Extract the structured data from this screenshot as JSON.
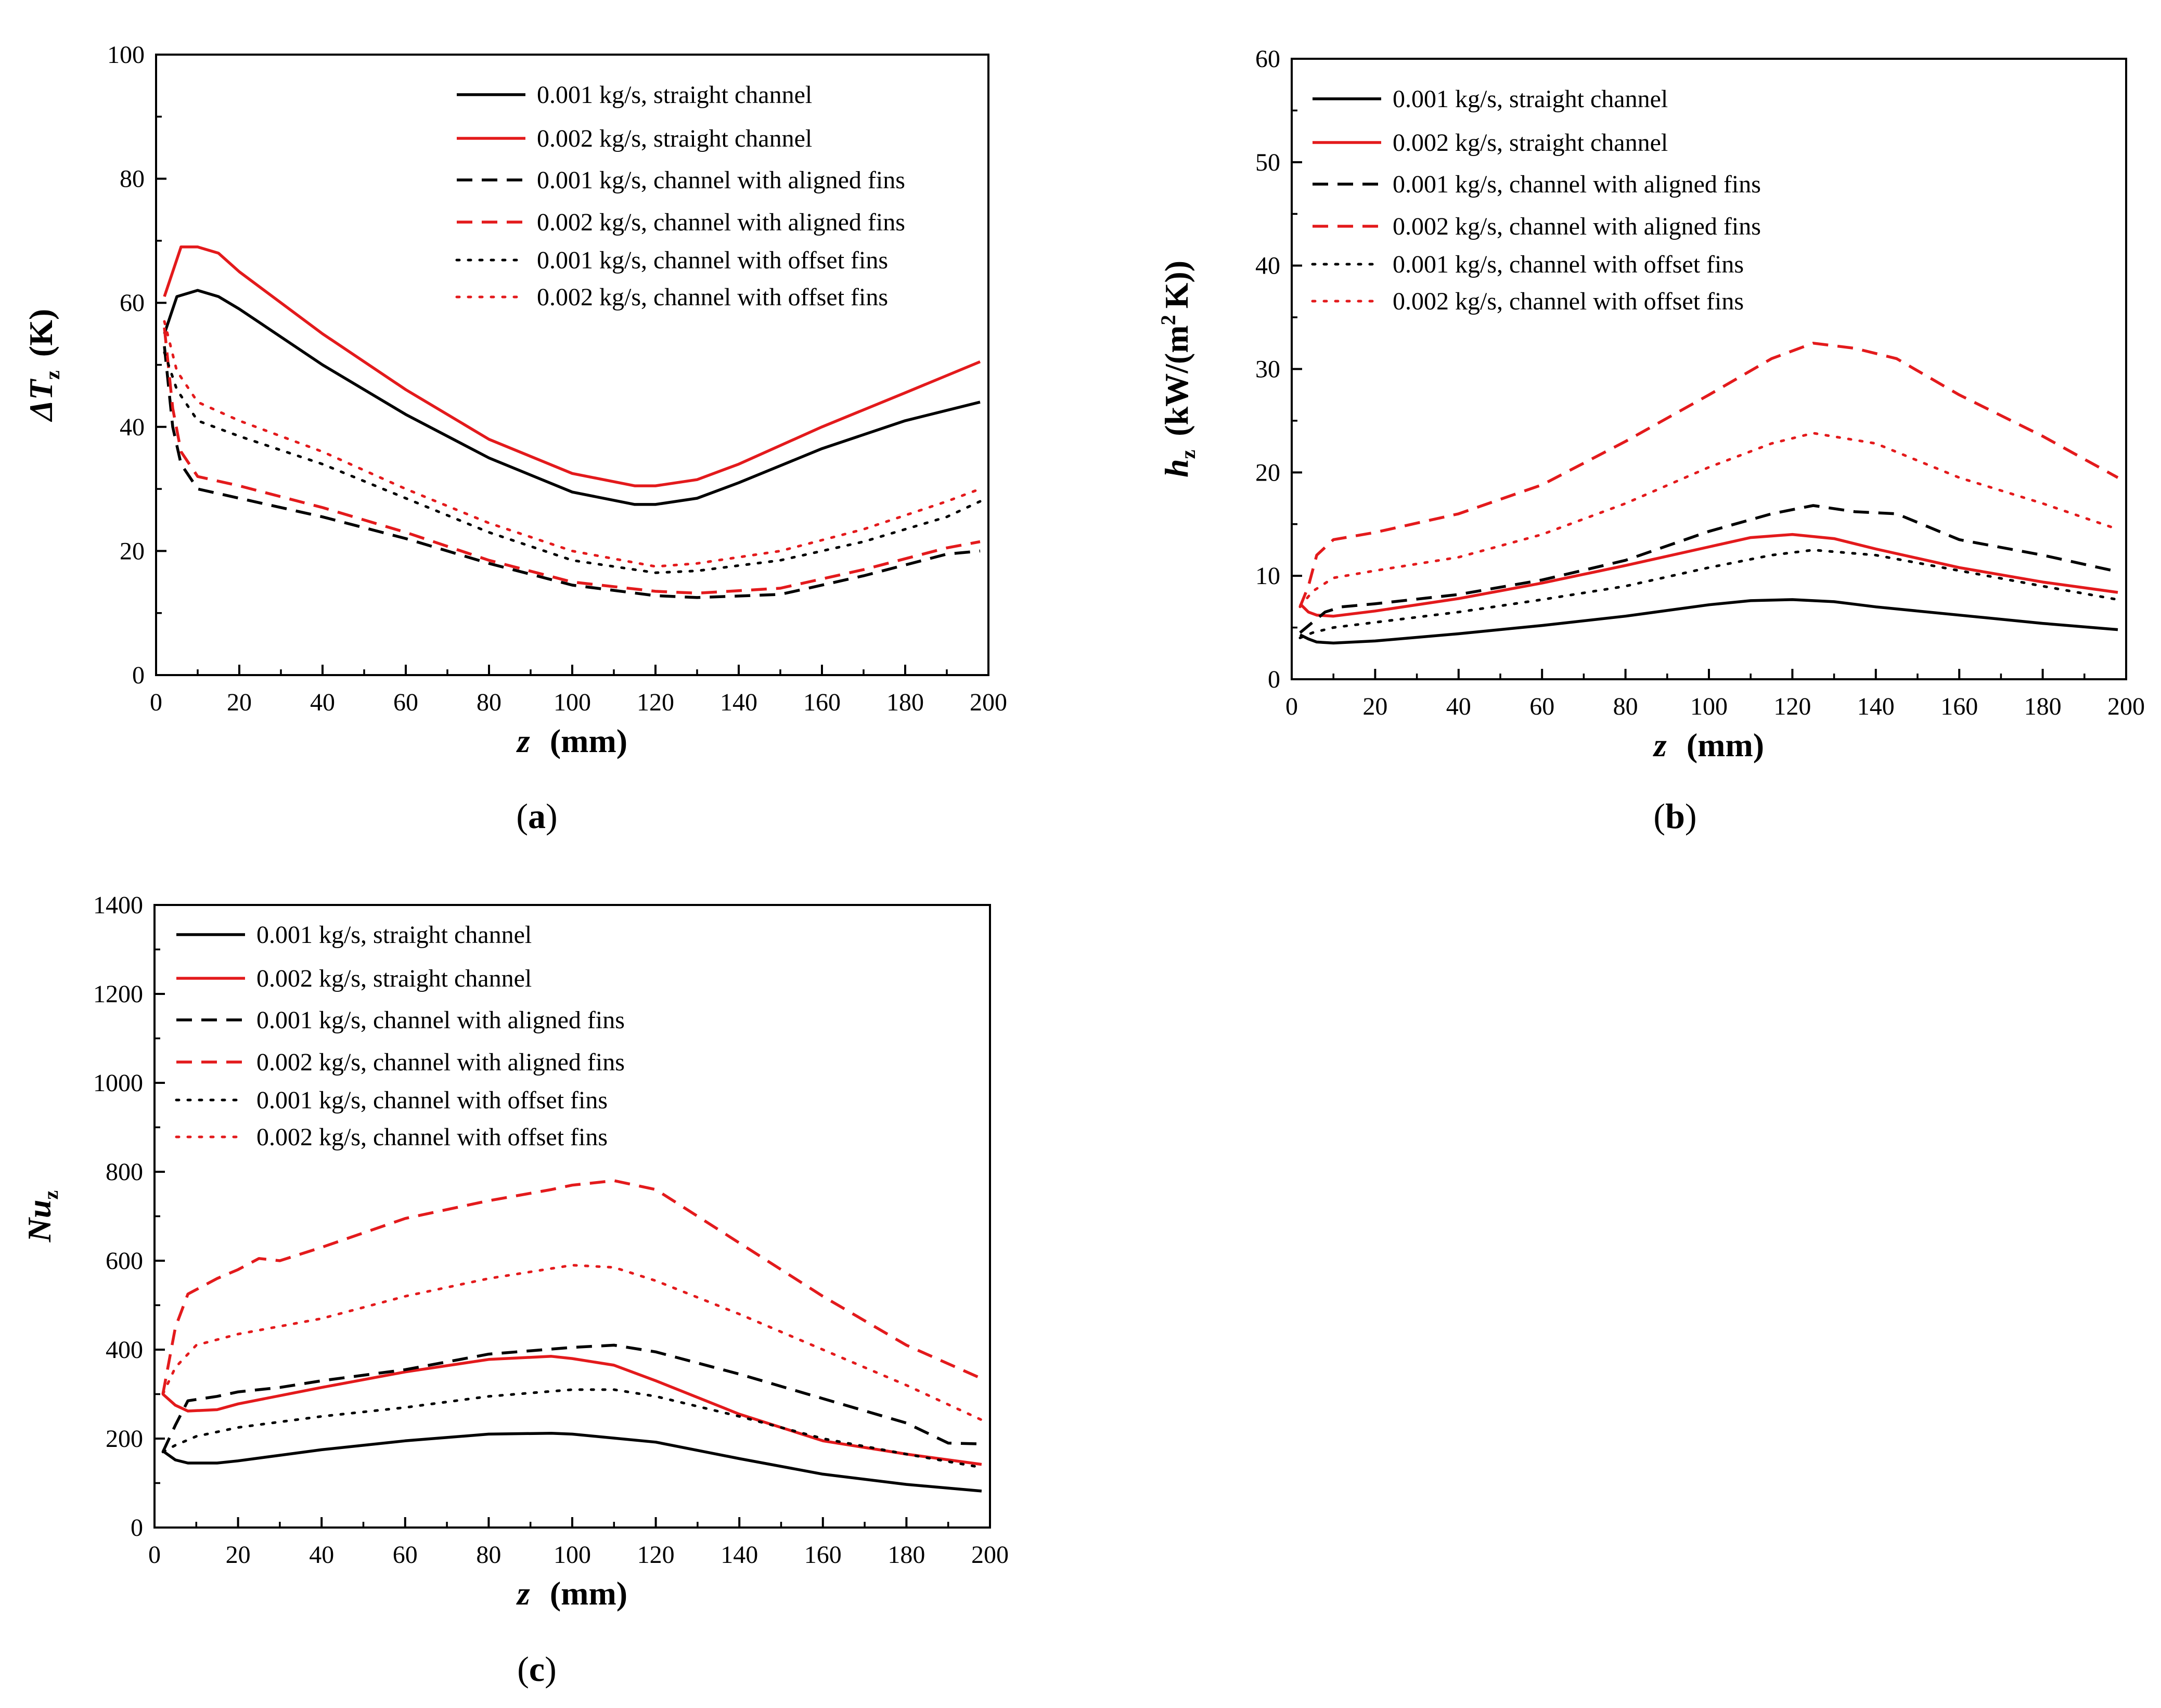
{
  "chart_data": [
    {
      "type": "line",
      "panel_label": "a",
      "xlabel": "z",
      "xunit": "(mm)",
      "ylabel_main": "ΔT",
      "ylabel_sub": "z",
      "yunit": "(K)",
      "xlim": [
        0,
        200
      ],
      "ylim": [
        0,
        100
      ],
      "xticks": [
        "0",
        "20",
        "40",
        "60",
        "80",
        "100",
        "120",
        "140",
        "160",
        "180",
        "200"
      ],
      "yticks": [
        "0",
        "20",
        "40",
        "60",
        "80",
        "100"
      ],
      "legend": {
        "position": "top-right"
      },
      "series": [
        {
          "name": "0.001 kg/s, straight channel",
          "color": "#000000",
          "style": "solid",
          "x": [
            2,
            5,
            10,
            15,
            20,
            40,
            60,
            80,
            100,
            115,
            120,
            130,
            140,
            160,
            180,
            198
          ],
          "y": [
            55,
            61,
            62,
            61,
            59,
            50,
            42,
            35,
            29.5,
            27.5,
            27.5,
            28.5,
            31,
            36.5,
            41,
            44
          ]
        },
        {
          "name": "0.002 kg/s, straight channel",
          "color": "#e31a1c",
          "style": "solid",
          "x": [
            2,
            6,
            10,
            15,
            20,
            40,
            60,
            80,
            100,
            115,
            120,
            130,
            140,
            160,
            180,
            198
          ],
          "y": [
            61,
            69,
            69,
            68,
            65,
            55,
            46,
            38,
            32.5,
            30.5,
            30.5,
            31.5,
            34,
            40,
            45.5,
            50.5
          ]
        },
        {
          "name": "0.001 kg/s, channel with aligned fins",
          "color": "#000000",
          "style": "dashed",
          "x": [
            2,
            4,
            6,
            10,
            20,
            40,
            60,
            80,
            100,
            120,
            130,
            150,
            170,
            190,
            198
          ],
          "y": [
            53,
            40,
            34,
            30,
            28.5,
            25.5,
            22,
            18,
            14.5,
            12.8,
            12.5,
            13,
            16,
            19.5,
            20
          ]
        },
        {
          "name": "0.002 kg/s, channel with aligned fins",
          "color": "#e31a1c",
          "style": "dashed",
          "x": [
            2,
            4,
            6,
            10,
            20,
            40,
            60,
            80,
            100,
            120,
            130,
            150,
            170,
            190,
            198
          ],
          "y": [
            56,
            43,
            36,
            32,
            30.5,
            27,
            23,
            18.5,
            15,
            13.5,
            13.2,
            14,
            17,
            20.5,
            21.5
          ]
        },
        {
          "name": "0.001 kg/s, channel with offset fins",
          "color": "#000000",
          "style": "dotted",
          "x": [
            2,
            5,
            10,
            20,
            40,
            60,
            80,
            100,
            120,
            130,
            150,
            170,
            190,
            198
          ],
          "y": [
            52,
            46,
            41,
            38.5,
            34,
            28.5,
            23,
            18.5,
            16.5,
            16.8,
            18.5,
            21.5,
            25.5,
            28
          ]
        },
        {
          "name": "0.002 kg/s, channel with offset fins",
          "color": "#e31a1c",
          "style": "dotted",
          "x": [
            2,
            5,
            10,
            20,
            40,
            60,
            80,
            100,
            120,
            130,
            150,
            170,
            190,
            198
          ],
          "y": [
            57,
            49,
            44,
            41,
            36,
            30,
            24.5,
            20,
            17.5,
            18,
            20,
            23.5,
            28,
            30
          ]
        }
      ]
    },
    {
      "type": "line",
      "panel_label": "b",
      "xlabel": "z",
      "xunit": "(mm)",
      "ylabel_main": "h",
      "ylabel_sub": "z",
      "yunit_pre": "(kW/(m",
      "yunit_sup": "2",
      "yunit_post": "K))",
      "xlim": [
        0,
        200
      ],
      "ylim": [
        0,
        60
      ],
      "xticks": [
        "0",
        "20",
        "40",
        "60",
        "80",
        "100",
        "120",
        "140",
        "160",
        "180",
        "200"
      ],
      "yticks": [
        "0",
        "10",
        "20",
        "30",
        "40",
        "50",
        "60"
      ],
      "legend": {
        "position": "top-left"
      },
      "series": [
        {
          "name": "0.001 kg/s, straight channel",
          "color": "#000000",
          "style": "solid",
          "x": [
            2,
            4,
            6,
            10,
            20,
            40,
            60,
            80,
            100,
            110,
            120,
            130,
            140,
            160,
            180,
            198
          ],
          "y": [
            4.3,
            3.9,
            3.6,
            3.5,
            3.7,
            4.4,
            5.2,
            6.1,
            7.2,
            7.6,
            7.7,
            7.5,
            7.0,
            6.2,
            5.4,
            4.8
          ]
        },
        {
          "name": "0.002 kg/s, straight channel",
          "color": "#e31a1c",
          "style": "solid",
          "x": [
            2,
            4,
            6,
            10,
            20,
            40,
            60,
            80,
            100,
            110,
            120,
            130,
            140,
            160,
            180,
            198
          ],
          "y": [
            7.3,
            6.5,
            6.2,
            6.1,
            6.6,
            7.8,
            9.3,
            11.0,
            12.8,
            13.7,
            14.0,
            13.6,
            12.6,
            10.8,
            9.4,
            8.4
          ]
        },
        {
          "name": "0.001 kg/s, channel with aligned fins",
          "color": "#000000",
          "style": "dashed",
          "x": [
            2,
            5,
            8,
            12,
            20,
            40,
            60,
            80,
            100,
            115,
            125,
            135,
            145,
            160,
            180,
            198
          ],
          "y": [
            4.5,
            5.5,
            6.5,
            7.0,
            7.3,
            8.2,
            9.6,
            11.5,
            14.3,
            16.0,
            16.8,
            16.2,
            16.0,
            13.5,
            12.0,
            10.4
          ]
        },
        {
          "name": "0.002 kg/s, channel with aligned fins",
          "color": "#e31a1c",
          "style": "dashed",
          "x": [
            2,
            4,
            6,
            10,
            20,
            40,
            60,
            80,
            100,
            115,
            125,
            135,
            145,
            160,
            180,
            198
          ],
          "y": [
            7,
            9,
            12,
            13.5,
            14.2,
            16.0,
            18.8,
            23.0,
            27.5,
            31.0,
            32.5,
            32.0,
            31.0,
            27.5,
            23.5,
            19.5
          ]
        },
        {
          "name": "0.001 kg/s, channel with offset fins",
          "color": "#000000",
          "style": "dotted",
          "x": [
            2,
            5,
            10,
            20,
            40,
            60,
            80,
            100,
            115,
            125,
            140,
            160,
            180,
            198
          ],
          "y": [
            4.0,
            4.5,
            5.0,
            5.5,
            6.5,
            7.7,
            9.0,
            10.8,
            12.0,
            12.5,
            12.0,
            10.5,
            9.0,
            7.7
          ]
        },
        {
          "name": "0.002 kg/s, channel with offset fins",
          "color": "#e31a1c",
          "style": "dotted",
          "x": [
            2,
            5,
            10,
            20,
            40,
            60,
            80,
            100,
            115,
            125,
            140,
            160,
            180,
            198
          ],
          "y": [
            7,
            8.5,
            9.8,
            10.5,
            11.8,
            14.0,
            17.0,
            20.5,
            22.8,
            23.8,
            22.8,
            19.5,
            17.0,
            14.5
          ]
        }
      ]
    },
    {
      "type": "line",
      "panel_label": "c",
      "xlabel": "z",
      "xunit": "(mm)",
      "ylabel_main": "Nu",
      "ylabel_sub": "z",
      "xlim": [
        0,
        200
      ],
      "ylim": [
        0,
        1400
      ],
      "xticks": [
        "0",
        "20",
        "40",
        "60",
        "80",
        "100",
        "120",
        "140",
        "160",
        "180",
        "200"
      ],
      "yticks": [
        "0",
        "200",
        "400",
        "600",
        "800",
        "1000",
        "1200",
        "1400"
      ],
      "legend": {
        "position": "top-left"
      },
      "series": [
        {
          "name": "0.001 kg/s, straight channel",
          "color": "#000000",
          "style": "solid",
          "x": [
            2,
            5,
            8,
            15,
            20,
            40,
            60,
            80,
            95,
            100,
            120,
            140,
            160,
            180,
            198
          ],
          "y": [
            172,
            152,
            145,
            145,
            150,
            175,
            195,
            210,
            212,
            210,
            192,
            155,
            120,
            97,
            82
          ]
        },
        {
          "name": "0.002 kg/s, straight channel",
          "color": "#e31a1c",
          "style": "solid",
          "x": [
            2,
            5,
            8,
            15,
            20,
            40,
            60,
            80,
            95,
            100,
            110,
            120,
            140,
            160,
            180,
            198
          ],
          "y": [
            300,
            275,
            262,
            265,
            278,
            315,
            350,
            378,
            385,
            380,
            365,
            330,
            255,
            195,
            165,
            142
          ]
        },
        {
          "name": "0.001 kg/s, channel with aligned fins",
          "color": "#000000",
          "style": "dashed",
          "x": [
            2,
            5,
            8,
            15,
            20,
            30,
            40,
            60,
            80,
            100,
            110,
            120,
            140,
            160,
            180,
            190,
            198
          ],
          "y": [
            170,
            230,
            285,
            295,
            305,
            315,
            330,
            355,
            390,
            405,
            410,
            395,
            345,
            290,
            235,
            190,
            188
          ]
        },
        {
          "name": "0.002 kg/s, channel with aligned fins",
          "color": "#e31a1c",
          "style": "dashed",
          "x": [
            2,
            5,
            8,
            15,
            20,
            25,
            30,
            40,
            60,
            80,
            95,
            100,
            110,
            120,
            140,
            160,
            180,
            198
          ],
          "y": [
            300,
            450,
            525,
            560,
            580,
            605,
            600,
            630,
            695,
            735,
            760,
            770,
            780,
            760,
            640,
            520,
            410,
            335
          ]
        },
        {
          "name": "0.001 kg/s, channel with offset fins",
          "color": "#000000",
          "style": "dotted",
          "x": [
            2,
            5,
            10,
            20,
            40,
            60,
            80,
            100,
            110,
            120,
            140,
            160,
            180,
            198
          ],
          "y": [
            170,
            185,
            205,
            225,
            250,
            270,
            295,
            310,
            310,
            295,
            250,
            200,
            165,
            135
          ]
        },
        {
          "name": "0.002 kg/s, channel with offset fins",
          "color": "#e31a1c",
          "style": "dotted",
          "x": [
            2,
            5,
            10,
            20,
            40,
            60,
            80,
            100,
            110,
            120,
            140,
            160,
            180,
            198
          ],
          "y": [
            300,
            360,
            410,
            435,
            470,
            520,
            560,
            590,
            585,
            555,
            480,
            400,
            320,
            242
          ]
        }
      ]
    }
  ]
}
